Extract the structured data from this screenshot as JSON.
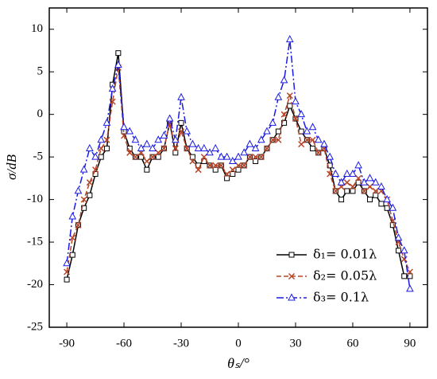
{
  "chart_data": {
    "type": "line",
    "xlabel": "θₛ/°",
    "ylabel": "σ/dB",
    "x": [
      -90,
      -87,
      -84,
      -81,
      -78,
      -75,
      -72,
      -69,
      -66,
      -63,
      -60,
      -57,
      -54,
      -51,
      -48,
      -45,
      -42,
      -39,
      -36,
      -33,
      -30,
      -27,
      -24,
      -21,
      -18,
      -15,
      -12,
      -9,
      -6,
      -3,
      0,
      3,
      6,
      9,
      12,
      15,
      18,
      21,
      24,
      27,
      30,
      33,
      36,
      39,
      42,
      45,
      48,
      51,
      54,
      57,
      60,
      63,
      66,
      69,
      72,
      75,
      78,
      81,
      84,
      87,
      90
    ],
    "series": [
      {
        "name": "δ₁= 0.01λ",
        "color": "#000000",
        "line_style": "solid",
        "marker": "square",
        "values": [
          -19.4,
          -16.5,
          -13,
          -11,
          -9.5,
          -7,
          -5,
          -4,
          3.5,
          7.2,
          -2,
          -4,
          -5,
          -5,
          -6.5,
          -5,
          -5,
          -4,
          -1,
          -4.5,
          -1,
          -4,
          -5,
          -6,
          -5.5,
          -6,
          -6.5,
          -6,
          -7.5,
          -7,
          -6.5,
          -6,
          -5,
          -5.5,
          -5,
          -4,
          -3,
          -2,
          -1,
          1,
          -0.5,
          -2,
          -3,
          -4,
          -4.5,
          -4,
          -6,
          -9,
          -10,
          -9,
          -9,
          -8,
          -9,
          -10,
          -9.5,
          -10.5,
          -11,
          -13,
          -16,
          -19,
          -19
        ]
      },
      {
        "name": "δ₂= 0.05λ",
        "color": "#b5462a",
        "line_style": "dashed",
        "marker": "x",
        "values": [
          -18.5,
          -14.5,
          -13,
          -10,
          -8,
          -6.5,
          -4,
          -3,
          1.5,
          5.5,
          -2.5,
          -4.5,
          -5,
          -4.5,
          -5.5,
          -5,
          -4.5,
          -4,
          -1,
          -4,
          -2,
          -4,
          -5.5,
          -6.5,
          -5,
          -6,
          -6,
          -6,
          -7,
          -6.5,
          -6,
          -6,
          -5,
          -5,
          -5,
          -4,
          -3,
          -3,
          0,
          2.2,
          -0.5,
          -3.5,
          -3,
          -3,
          -4.5,
          -4,
          -7,
          -9,
          -8.5,
          -8,
          -8.5,
          -7.5,
          -9,
          -8.5,
          -9,
          -9,
          -10,
          -12.5,
          -15,
          -17,
          -18.5
        ]
      },
      {
        "name": "δ₃= 0.1λ",
        "color": "#1a1ae6",
        "line_style": "dashdot",
        "marker": "triangle",
        "values": [
          -17.5,
          -12,
          -9,
          -6.5,
          -4,
          -5,
          -3,
          -1,
          3,
          5.8,
          -1.5,
          -2,
          -3,
          -4,
          -3.5,
          -4,
          -3,
          -2.5,
          -0.5,
          -3,
          2,
          -2,
          -3.5,
          -4,
          -4,
          -4.5,
          -4,
          -5,
          -5,
          -5.5,
          -5,
          -4.5,
          -3.5,
          -4,
          -3,
          -2,
          -1,
          2,
          4,
          8.8,
          1.5,
          0,
          -2,
          -1.5,
          -3,
          -3.5,
          -5,
          -7,
          -8,
          -7,
          -7,
          -6,
          -8,
          -7.5,
          -8,
          -8.5,
          -10,
          -11,
          -14.5,
          -16,
          -20.5
        ]
      }
    ],
    "xlim": [
      -99.2,
      99.2
    ],
    "xticks": [
      -90,
      -60,
      -30,
      0,
      30,
      60,
      90
    ],
    "ylim": [
      -25,
      12.5
    ],
    "yticks": [
      -25,
      -20,
      -15,
      -10,
      -5,
      0,
      5,
      10
    ],
    "legend": "lower right"
  }
}
